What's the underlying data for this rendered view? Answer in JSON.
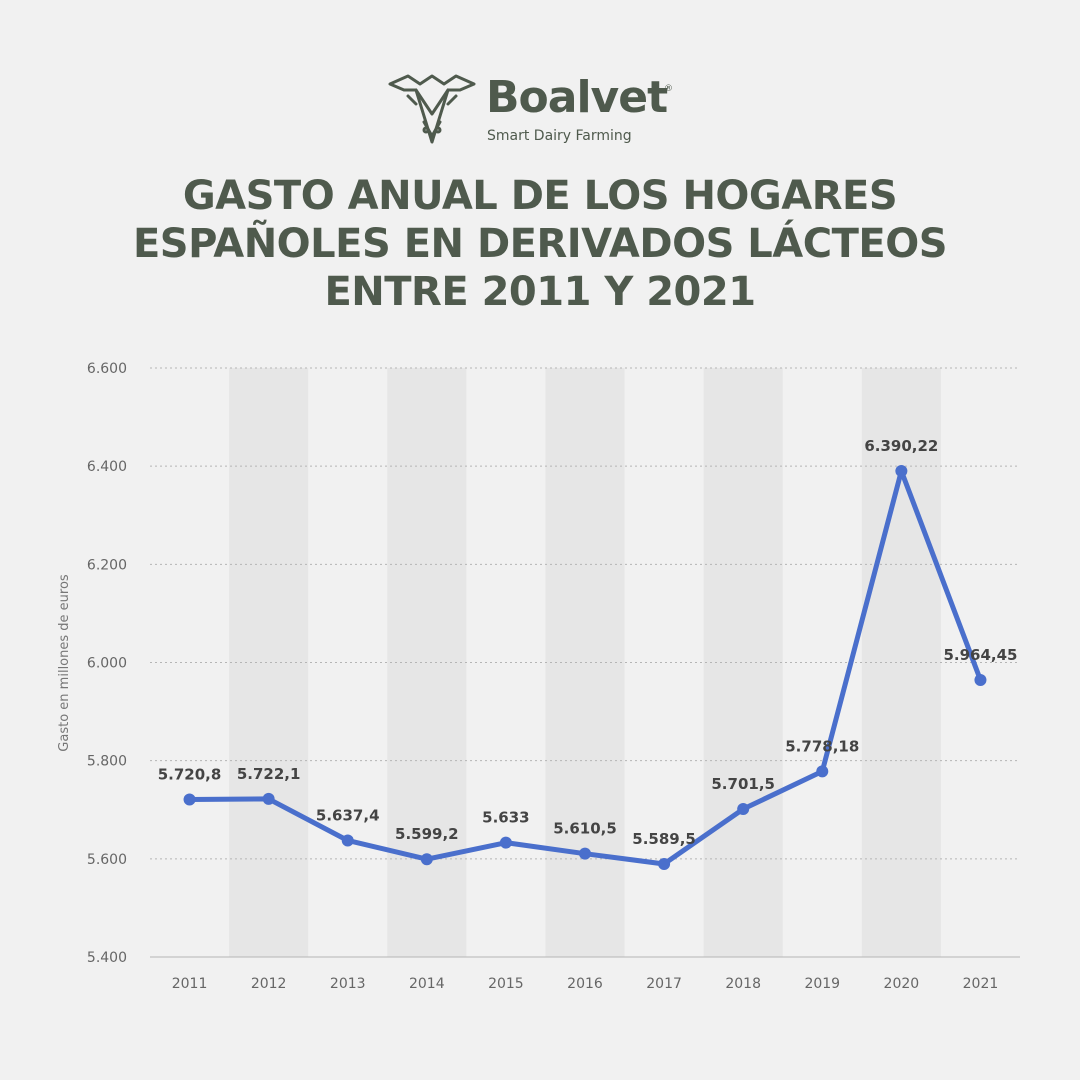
{
  "brand": {
    "name": "Boalvet",
    "registered_mark": "®",
    "tagline": "Smart Dairy Farming",
    "color": "#4f5a4d"
  },
  "title_lines": [
    "GASTO ANUAL DE LOS HOGARES",
    "ESPAÑOLES EN DERIVADOS LÁCTEOS",
    "ENTRE 2011 Y 2021"
  ],
  "chart_data": {
    "type": "line",
    "title": "GASTO ANUAL DE LOS HOGARES ESPAÑOLES EN DERIVADOS LÁCTEOS ENTRE 2011 Y 2021",
    "xlabel": "",
    "ylabel": "Gasto en millones de euros",
    "categories": [
      "2011",
      "2012",
      "2013",
      "2014",
      "2015",
      "2016",
      "2017",
      "2018",
      "2019",
      "2020",
      "2021"
    ],
    "values": [
      5720.8,
      5722.1,
      5637.4,
      5599.2,
      5633,
      5610.5,
      5589.5,
      5701.5,
      5778.18,
      6390.22,
      5964.45
    ],
    "data_labels": [
      "5.720,8",
      "5.722,1",
      "5.637,4",
      "5.599,2",
      "5.633",
      "5.610,5",
      "5.589,5",
      "5.701,5",
      "5.778,18",
      "6.390,22",
      "5.964,45"
    ],
    "ylim": [
      5400,
      6600
    ],
    "yticks": [
      5400,
      5600,
      5800,
      6000,
      6200,
      6400,
      6600
    ],
    "ytick_labels": [
      "5.400",
      "5.600",
      "5.800",
      "6.000",
      "6.200",
      "6.400",
      "6.600"
    ],
    "grid": true,
    "line_color": "#4a6fcc",
    "band_color": "#e6e6e6"
  }
}
